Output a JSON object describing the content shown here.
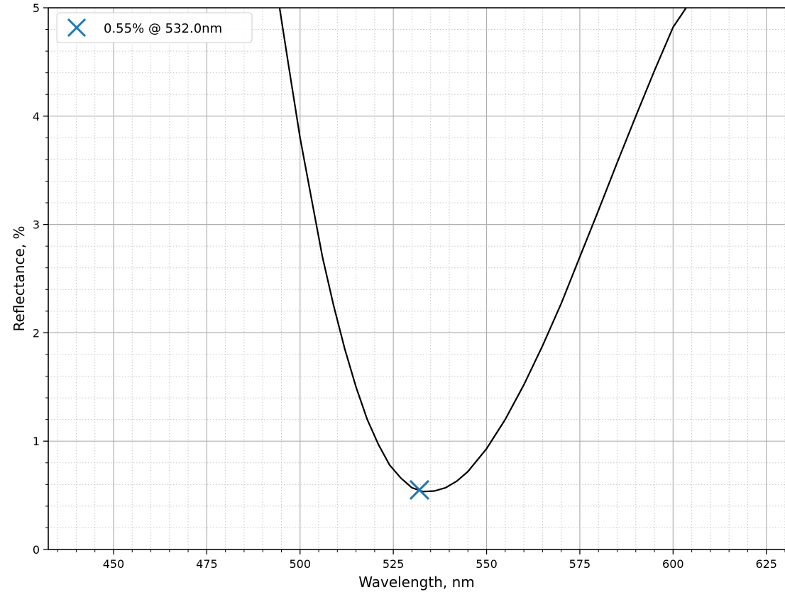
{
  "chart_data": {
    "type": "line",
    "title": "",
    "xlabel": "Wavelength, nm",
    "ylabel": "Reflectance, %",
    "xlim": [
      432.5,
      630
    ],
    "ylim": [
      0,
      5
    ],
    "x_ticks": [
      450,
      475,
      500,
      525,
      550,
      575,
      600,
      625
    ],
    "y_ticks": [
      0,
      1,
      2,
      3,
      4,
      5
    ],
    "x_tick_labels": [
      "450",
      "475",
      "500",
      "525",
      "550",
      "575",
      "600",
      "625"
    ],
    "y_tick_labels": [
      "0",
      "1",
      "2",
      "3",
      "4",
      "5"
    ],
    "grid": true,
    "minor_grid": true,
    "legend_position": "top-left",
    "series": [
      {
        "type": "line",
        "color": "#000000",
        "x": [
          494.5,
          497,
          500,
          503,
          506,
          509,
          512,
          515,
          518,
          521,
          524,
          527,
          530,
          533,
          536,
          539,
          542,
          545,
          550,
          555,
          560,
          565,
          570,
          575,
          580,
          585,
          590,
          595,
          600,
          603.5
        ],
        "y": [
          5.0,
          4.45,
          3.8,
          3.25,
          2.7,
          2.25,
          1.85,
          1.5,
          1.2,
          0.97,
          0.78,
          0.66,
          0.57,
          0.535,
          0.54,
          0.57,
          0.63,
          0.72,
          0.93,
          1.2,
          1.52,
          1.88,
          2.27,
          2.7,
          3.13,
          3.57,
          4.0,
          4.42,
          4.82,
          5.0
        ]
      },
      {
        "type": "scatter",
        "name": "0.55% @ 532.0nm",
        "marker": "x-icon",
        "color": "#1f77b4",
        "x": [
          532.0
        ],
        "y": [
          0.55
        ]
      }
    ]
  }
}
